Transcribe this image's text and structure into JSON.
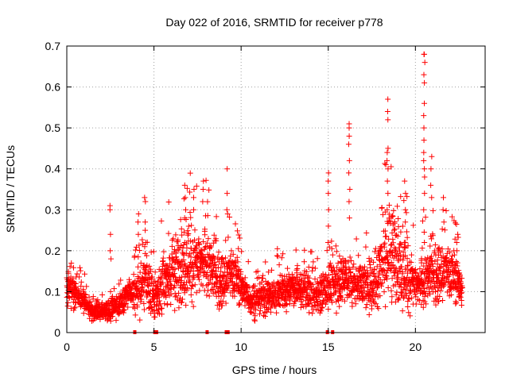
{
  "chart_data": {
    "type": "scatter",
    "title": "Day 022 of 2016, SRMTID for receiver p778",
    "xlabel": "GPS time / hours",
    "ylabel": "SRMTID / TECUs",
    "xlim": [
      0,
      24
    ],
    "ylim": [
      0,
      0.7
    ],
    "x_ticks": [
      0,
      5,
      10,
      15,
      20
    ],
    "x_tick_labels": [
      "0",
      "5",
      "10",
      "15",
      "20"
    ],
    "y_ticks": [
      0,
      0.1,
      0.2,
      0.3,
      0.4,
      0.5,
      0.6,
      0.7
    ],
    "y_tick_labels": [
      "0",
      "0.1",
      "0.2",
      "0.3",
      "0.4",
      "0.5",
      "0.6",
      "0.7"
    ],
    "grid": true,
    "marker": "plus",
    "color": "#ff0000",
    "series_envelope": {
      "name": "SRMTID",
      "x": [
        0,
        0.5,
        1,
        1.5,
        2,
        2.5,
        3,
        3.5,
        4,
        4.5,
        5,
        5.5,
        6,
        6.5,
        7,
        7.5,
        8,
        8.5,
        9,
        9.5,
        10,
        10.5,
        11,
        11.5,
        12,
        12.5,
        13,
        13.5,
        14,
        14.5,
        15,
        15.5,
        16,
        16.5,
        17,
        17.5,
        18,
        18.5,
        19,
        19.5,
        20,
        20.5,
        21,
        21.5,
        22,
        22.5,
        22.7
      ],
      "typical": [
        0.11,
        0.1,
        0.08,
        0.05,
        0.05,
        0.06,
        0.07,
        0.09,
        0.1,
        0.13,
        0.09,
        0.12,
        0.14,
        0.16,
        0.18,
        0.16,
        0.18,
        0.14,
        0.13,
        0.15,
        0.11,
        0.08,
        0.08,
        0.09,
        0.1,
        0.1,
        0.11,
        0.1,
        0.1,
        0.09,
        0.12,
        0.12,
        0.14,
        0.12,
        0.12,
        0.11,
        0.16,
        0.2,
        0.18,
        0.14,
        0.11,
        0.13,
        0.15,
        0.15,
        0.15,
        0.12,
        0.09
      ],
      "spread": [
        0.05,
        0.04,
        0.03,
        0.02,
        0.02,
        0.03,
        0.04,
        0.04,
        0.05,
        0.08,
        0.06,
        0.08,
        0.09,
        0.1,
        0.1,
        0.09,
        0.09,
        0.08,
        0.07,
        0.07,
        0.05,
        0.04,
        0.05,
        0.05,
        0.05,
        0.05,
        0.05,
        0.05,
        0.05,
        0.05,
        0.06,
        0.06,
        0.07,
        0.06,
        0.06,
        0.06,
        0.1,
        0.12,
        0.11,
        0.09,
        0.06,
        0.07,
        0.08,
        0.08,
        0.07,
        0.06,
        0.04
      ]
    },
    "spikes": [
      {
        "x": 2.5,
        "values": [
          0.31,
          0.3,
          0.24,
          0.2,
          0.18
        ]
      },
      {
        "x": 4.1,
        "values": [
          0.29,
          0.27,
          0.24
        ]
      },
      {
        "x": 4.5,
        "values": [
          0.33,
          0.32,
          0.27,
          0.25,
          0.22
        ]
      },
      {
        "x": 6.8,
        "values": [
          0.36,
          0.33,
          0.3,
          0.28
        ]
      },
      {
        "x": 7.3,
        "values": [
          0.35,
          0.33,
          0.3
        ]
      },
      {
        "x": 7.8,
        "values": [
          0.37,
          0.35,
          0.32
        ]
      },
      {
        "x": 9.2,
        "values": [
          0.4,
          0.34,
          0.3,
          0.29
        ]
      },
      {
        "x": 15.0,
        "values": [
          0.39,
          0.37,
          0.34,
          0.3,
          0.26,
          0.22
        ]
      },
      {
        "x": 16.2,
        "values": [
          0.51,
          0.5,
          0.48,
          0.46,
          0.42,
          0.39,
          0.35,
          0.32,
          0.28
        ]
      },
      {
        "x": 18.4,
        "values": [
          0.57,
          0.54,
          0.52,
          0.45,
          0.44,
          0.42,
          0.4,
          0.37,
          0.34,
          0.3
        ]
      },
      {
        "x": 19.4,
        "values": [
          0.37,
          0.34,
          0.3,
          0.27
        ]
      },
      {
        "x": 20.5,
        "values": [
          0.68,
          0.68,
          0.66,
          0.63,
          0.61,
          0.56,
          0.53,
          0.5,
          0.47,
          0.44,
          0.42,
          0.4,
          0.38,
          0.34,
          0.3
        ]
      },
      {
        "x": 20.9,
        "values": [
          0.43,
          0.4,
          0.36,
          0.33
        ]
      },
      {
        "x": 21.6,
        "values": [
          0.33,
          0.3,
          0.27
        ]
      },
      {
        "x": 22.4,
        "values": [
          0.24,
          0.22,
          0.2
        ]
      }
    ],
    "gap_markers": [
      3.9,
      5.05,
      5.15,
      8.05,
      9.15,
      9.25,
      14.95,
      15.25
    ]
  }
}
